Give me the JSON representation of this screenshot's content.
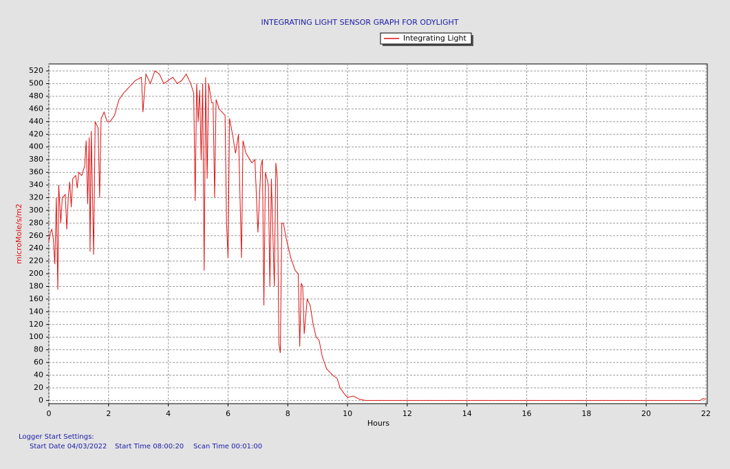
{
  "chart_data": {
    "type": "line",
    "title": "INTEGRATING LIGHT SENSOR GRAPH FOR ODYLIGHT",
    "x_label": "Hours",
    "y_label": "microMole/s/m2",
    "legend": "top-center",
    "grid": true,
    "xlim": [
      0,
      22
    ],
    "xticks": [
      0,
      2,
      4,
      6,
      8,
      10,
      12,
      14,
      16,
      18,
      20,
      22
    ],
    "ylim": [
      -5,
      531
    ],
    "yticks": [
      0,
      20,
      40,
      60,
      80,
      100,
      120,
      140,
      160,
      180,
      200,
      220,
      240,
      260,
      280,
      300,
      320,
      340,
      360,
      380,
      400,
      420,
      440,
      460,
      480,
      500,
      520
    ],
    "x": [
      0,
      0.05,
      0.1,
      0.15,
      0.2,
      0.25,
      0.3,
      0.33,
      0.4,
      0.45,
      0.55,
      0.6,
      0.65,
      0.7,
      0.75,
      0.8,
      0.9,
      0.95,
      1.0,
      1.1,
      1.2,
      1.25,
      1.3,
      1.35,
      1.38,
      1.42,
      1.5,
      1.55,
      1.65,
      1.7,
      1.75,
      1.85,
      1.95,
      2.05,
      2.2,
      2.35,
      2.5,
      2.7,
      2.9,
      3.1,
      3.15,
      3.25,
      3.4,
      3.55,
      3.7,
      3.85,
      4.0,
      4.15,
      4.3,
      4.45,
      4.6,
      4.75,
      4.85,
      4.9,
      4.95,
      5.0,
      5.05,
      5.1,
      5.15,
      5.2,
      5.25,
      5.3,
      5.35,
      5.45,
      5.5,
      5.55,
      5.6,
      5.7,
      5.8,
      5.9,
      5.95,
      6.0,
      6.05,
      6.15,
      6.25,
      6.35,
      6.45,
      6.5,
      6.6,
      6.8,
      6.9,
      7.0,
      7.1,
      7.15,
      7.2,
      7.25,
      7.35,
      7.4,
      7.45,
      7.55,
      7.6,
      7.65,
      7.7,
      7.75,
      7.8,
      7.85,
      7.95,
      8.1,
      8.25,
      8.35,
      8.4,
      8.45,
      8.5,
      8.55,
      8.65,
      8.75,
      8.85,
      8.95,
      9.05,
      9.15,
      9.3,
      9.5,
      9.65,
      9.75,
      9.9,
      10.0,
      10.2,
      10.4,
      10.6,
      12,
      16,
      20,
      21.8,
      21.9,
      22.0
    ],
    "series": [
      {
        "name": "Integrating Light",
        "color": "#dd1111",
        "values": [
          250,
          265,
          270,
          255,
          215,
          320,
          175,
          340,
          280,
          320,
          325,
          270,
          320,
          345,
          305,
          350,
          355,
          335,
          360,
          355,
          370,
          410,
          310,
          415,
          235,
          425,
          230,
          440,
          430,
          320,
          445,
          455,
          440,
          440,
          450,
          475,
          485,
          495,
          505,
          510,
          455,
          515,
          500,
          520,
          515,
          500,
          505,
          510,
          500,
          505,
          515,
          500,
          485,
          315,
          500,
          440,
          490,
          380,
          500,
          205,
          510,
          350,
          500,
          470,
          470,
          320,
          475,
          460,
          455,
          450,
          280,
          225,
          445,
          420,
          390,
          420,
          225,
          410,
          390,
          375,
          380,
          265,
          370,
          380,
          150,
          360,
          340,
          180,
          350,
          180,
          375,
          350,
          90,
          75,
          280,
          280,
          255,
          225,
          205,
          200,
          85,
          185,
          180,
          105,
          160,
          150,
          120,
          100,
          95,
          70,
          50,
          40,
          35,
          20,
          10,
          5,
          7,
          2,
          0,
          0,
          0,
          0,
          0,
          3,
          2
        ]
      }
    ]
  },
  "footer": {
    "heading": "Logger Start Settings:",
    "start_date": "Start Date 04/03/2022",
    "start_time": "Start Time 08:00:20",
    "scan_time": "Scan Time 00:01:00"
  }
}
